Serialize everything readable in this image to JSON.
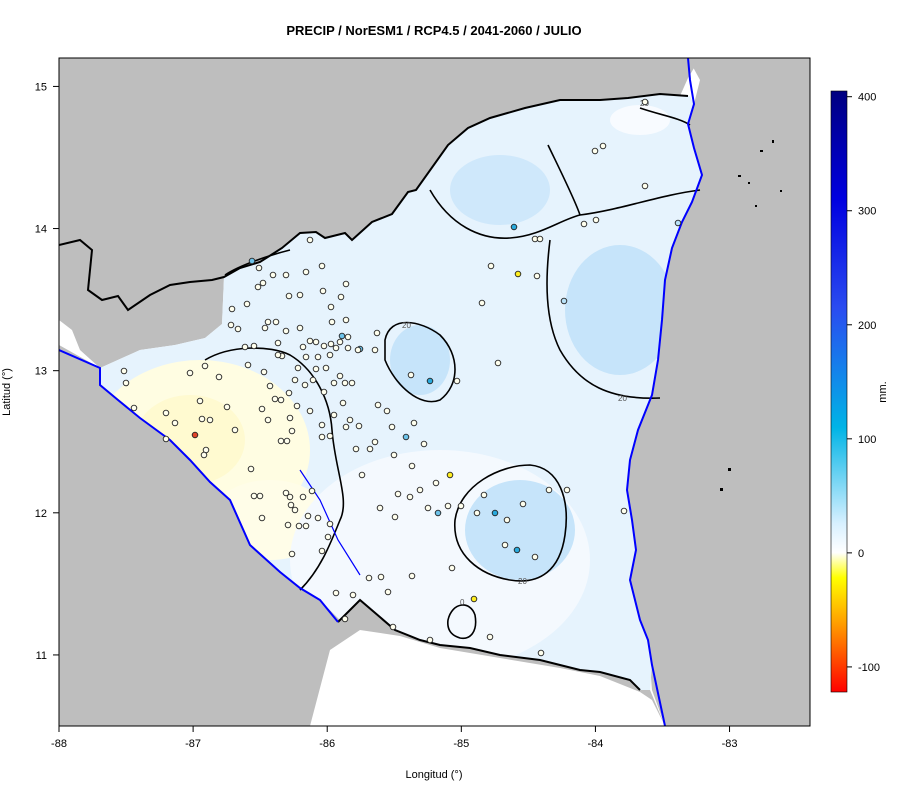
{
  "map": {
    "title": "PRECIP / NorESM1 / RCP4.5 / 2041-2060 / JULIO",
    "xlabel": "Longitud (°)",
    "ylabel": "Latitud (°)",
    "xlim": [
      -88,
      -82.4
    ],
    "ylim": [
      10.5,
      15.2
    ],
    "x_ticks": [
      -88,
      -87,
      -86,
      -85,
      -84,
      -83
    ],
    "x_tick_labels": [
      "-88",
      "-87",
      "-86",
      "-85",
      "-84",
      "-83"
    ],
    "y_ticks": [
      11,
      12,
      13,
      14,
      15
    ],
    "y_tick_labels": [
      "11",
      "12",
      "13",
      "14",
      "15"
    ],
    "contour_labels": [
      "20",
      "20",
      "20",
      "20",
      "0"
    ],
    "colors": {
      "land_outside": "#bebebe",
      "water_boundary": "#0000ff",
      "border": "#000000",
      "contour": "#000000"
    }
  },
  "colorbar": {
    "unit": "mm.",
    "ticks": [
      400,
      300,
      200,
      100,
      0,
      -100
    ],
    "tick_labels": [
      "400",
      "300",
      "200",
      "100",
      "0",
      "-100"
    ],
    "range": [
      -122,
      405
    ]
  }
}
